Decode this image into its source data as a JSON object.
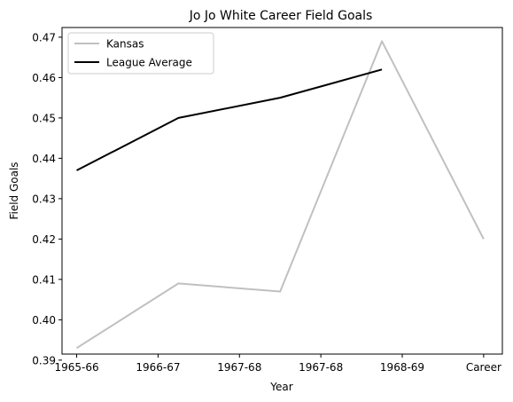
{
  "chart_data": {
    "type": "line",
    "title": "Jo Jo White Career Field Goals",
    "xlabel": "Year",
    "ylabel": "Field Goals",
    "ylim": [
      0.3915,
      0.4724
    ],
    "xlim": [
      -0.18,
      5.23
    ],
    "categories": [
      "1965-66",
      "1966-67",
      "1967-68",
      "1967-68",
      "1968-69",
      "Career"
    ],
    "yticks": [
      "0.39",
      "0.40",
      "0.41",
      "0.42",
      "0.43",
      "0.44",
      "0.45",
      "0.46",
      "0.47"
    ],
    "grid": false,
    "legend": "top-left",
    "series": [
      {
        "name": "Kansas",
        "color": "#c0c0c0",
        "x": [
          0,
          1.25,
          2.5,
          3.75,
          5
        ],
        "values": [
          0.393,
          0.409,
          0.407,
          0.469,
          0.42
        ]
      },
      {
        "name": "League Average",
        "color": "#000000",
        "x": [
          0,
          1.25,
          2.5,
          3.75
        ],
        "values": [
          0.437,
          0.45,
          0.455,
          0.462
        ]
      }
    ]
  }
}
